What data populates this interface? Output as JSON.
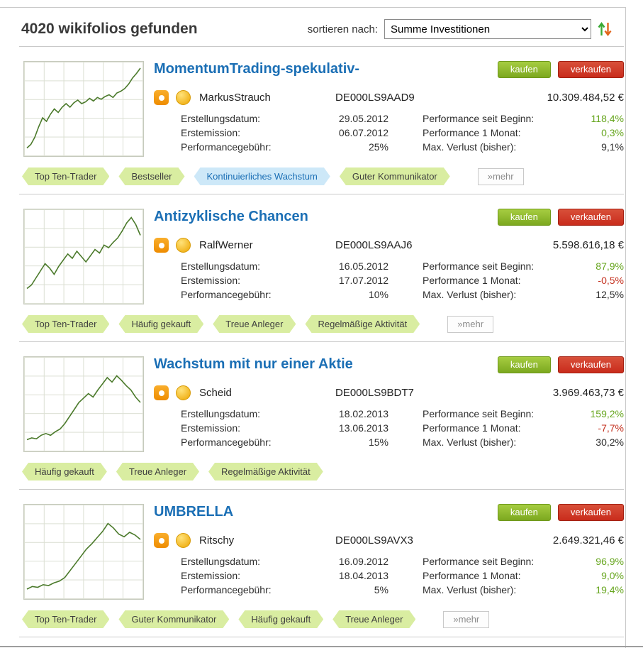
{
  "colors": {
    "title_blue": "#1b6fb5",
    "positive_green": "#67a61f",
    "negative_red": "#c4311f",
    "buy_button_green": "#7ca81f",
    "sell_button_red": "#c92c1c",
    "tag_green_bg": "#d9eda1",
    "tag_blue_bg": "#cde8f8",
    "chart_line_green": "#4b7a2b",
    "sort_up_arrow": "#3aaa35",
    "sort_down_arrow": "#e2661c"
  },
  "header": {
    "results_count": "4020 wikifolios gefunden",
    "sort_label": "sortieren nach:",
    "sort_selected": "Summe Investitionen"
  },
  "buttons": {
    "buy": "kaufen",
    "sell": "verkaufen",
    "more": "»mehr"
  },
  "labels": {
    "created": "Erstellungsdatum:",
    "issued": "Erstemission:",
    "fee": "Performancegebühr:",
    "perf_begin": "Performance seit Beginn:",
    "perf_month": "Performance 1 Monat:",
    "max_loss": "Max. Verlust (bisher):"
  },
  "cards": [
    {
      "title": "MomentumTrading-spekulativ-",
      "trader": "MarkusStrauch",
      "isin": "DE000LS9AAD9",
      "amount": "10.309.484,52 €",
      "created": "29.05.2012",
      "issued": "06.07.2012",
      "fee": "25%",
      "perf_begin": {
        "value": "118,4%",
        "tone": "pos"
      },
      "perf_month": {
        "value": "0,3%",
        "tone": "pos"
      },
      "max_loss": {
        "value": "9,1%",
        "tone": "neutral"
      },
      "tags": [
        {
          "label": "Top Ten-Trader",
          "style": "green"
        },
        {
          "label": "Bestseller",
          "style": "green"
        },
        {
          "label": "Kontinuierliches Wachstum",
          "style": "blue"
        },
        {
          "label": "Guter Kommunikator",
          "style": "green"
        }
      ],
      "has_more": true,
      "sparkline": [
        6,
        10,
        18,
        30,
        40,
        36,
        44,
        50,
        46,
        52,
        56,
        52,
        57,
        60,
        56,
        58,
        62,
        59,
        63,
        61,
        64,
        66,
        63,
        68,
        70,
        73,
        78,
        85,
        90,
        96
      ]
    },
    {
      "title": "Antizyklische Chancen",
      "trader": "RalfWerner",
      "isin": "DE000LS9AAJ6",
      "amount": "5.598.616,18 €",
      "created": "16.05.2012",
      "issued": "17.07.2012",
      "fee": "10%",
      "perf_begin": {
        "value": "87,9%",
        "tone": "pos"
      },
      "perf_month": {
        "value": "-0,5%",
        "tone": "neg"
      },
      "max_loss": {
        "value": "12,5%",
        "tone": "neutral"
      },
      "tags": [
        {
          "label": "Top Ten-Trader",
          "style": "green"
        },
        {
          "label": "Häufig gekauft",
          "style": "green"
        },
        {
          "label": "Treue Anleger",
          "style": "green"
        },
        {
          "label": "Regelmäßige Aktivität",
          "style": "green"
        }
      ],
      "has_more": true,
      "sparkline": [
        14,
        18,
        26,
        34,
        42,
        37,
        30,
        39,
        46,
        53,
        48,
        56,
        50,
        44,
        51,
        58,
        54,
        63,
        60,
        66,
        71,
        79,
        88,
        94,
        86,
        74
      ]
    },
    {
      "title": "Wachstum mit nur einer Aktie",
      "trader": "Scheid",
      "isin": "DE000LS9BDT7",
      "amount": "3.969.463,73 €",
      "created": "18.02.2013",
      "issued": "13.06.2013",
      "fee": "15%",
      "perf_begin": {
        "value": "159,2%",
        "tone": "pos"
      },
      "perf_month": {
        "value": "-7,7%",
        "tone": "neg"
      },
      "max_loss": {
        "value": "30,2%",
        "tone": "neutral"
      },
      "tags": [
        {
          "label": "Häufig gekauft",
          "style": "green"
        },
        {
          "label": "Treue Anleger",
          "style": "green"
        },
        {
          "label": "Regelmäßige Aktivität",
          "style": "green"
        }
      ],
      "has_more": false,
      "sparkline": [
        10,
        12,
        11,
        15,
        17,
        15,
        19,
        22,
        28,
        36,
        44,
        52,
        57,
        62,
        58,
        66,
        73,
        80,
        75,
        82,
        77,
        71,
        66,
        58,
        52
      ]
    },
    {
      "title": "UMBRELLA",
      "trader": "Ritschy",
      "isin": "DE000LS9AVX3",
      "amount": "2.649.321,46 €",
      "created": "16.09.2012",
      "issued": "18.04.2013",
      "fee": "5%",
      "perf_begin": {
        "value": "96,9%",
        "tone": "pos"
      },
      "perf_month": {
        "value": "9,0%",
        "tone": "pos"
      },
      "max_loss": {
        "value": "19,4%",
        "tone": "pos"
      },
      "tags": [
        {
          "label": "Top Ten-Trader",
          "style": "green"
        },
        {
          "label": "Guter Kommunikator",
          "style": "green"
        },
        {
          "label": "Häufig gekauft",
          "style": "green"
        },
        {
          "label": "Treue Anleger",
          "style": "green"
        }
      ],
      "has_more": true,
      "sparkline": [
        8,
        11,
        10,
        13,
        12,
        15,
        17,
        21,
        29,
        37,
        45,
        53,
        59,
        66,
        73,
        82,
        77,
        70,
        67,
        72,
        69,
        64
      ]
    }
  ]
}
